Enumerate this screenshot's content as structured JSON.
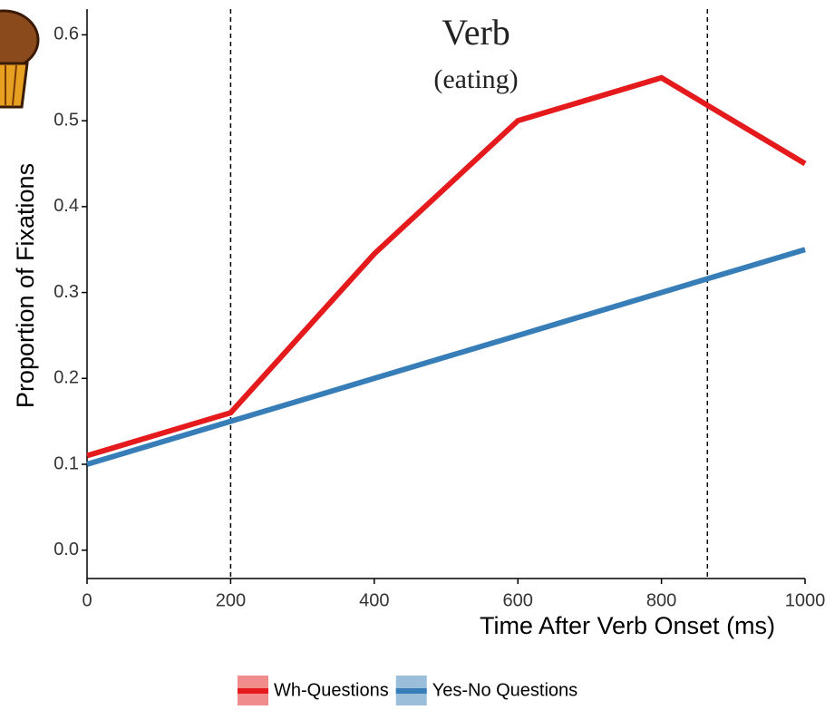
{
  "chart_data": {
    "type": "line",
    "x_label": "Time After Verb Onset (ms)",
    "y_label": "Proportion of Fixations",
    "annotations": [
      "Verb",
      "(eating)"
    ],
    "x": [
      0,
      200,
      400,
      600,
      800,
      1000
    ],
    "series": [
      {
        "name": "Wh-Questions",
        "color": "#e41a1c",
        "values": [
          0.11,
          0.16,
          0.345,
          0.5,
          0.55,
          0.45
        ]
      },
      {
        "name": "Yes-No Questions",
        "color": "#377eb8",
        "values": [
          0.1,
          0.15,
          0.2,
          0.25,
          0.3,
          0.35
        ]
      }
    ],
    "vlines": [
      200,
      864
    ],
    "xlim": [
      0,
      1000
    ],
    "xticks": [
      0,
      200,
      400,
      600,
      800,
      1000
    ],
    "ylim": [
      -0.033,
      0.63
    ],
    "yticks": [
      {
        "value": 0,
        "label": "0.0"
      },
      0.1,
      0.2,
      0.3,
      0.4,
      0.5,
      0.6
    ],
    "grid": false,
    "legend": "bottom"
  }
}
